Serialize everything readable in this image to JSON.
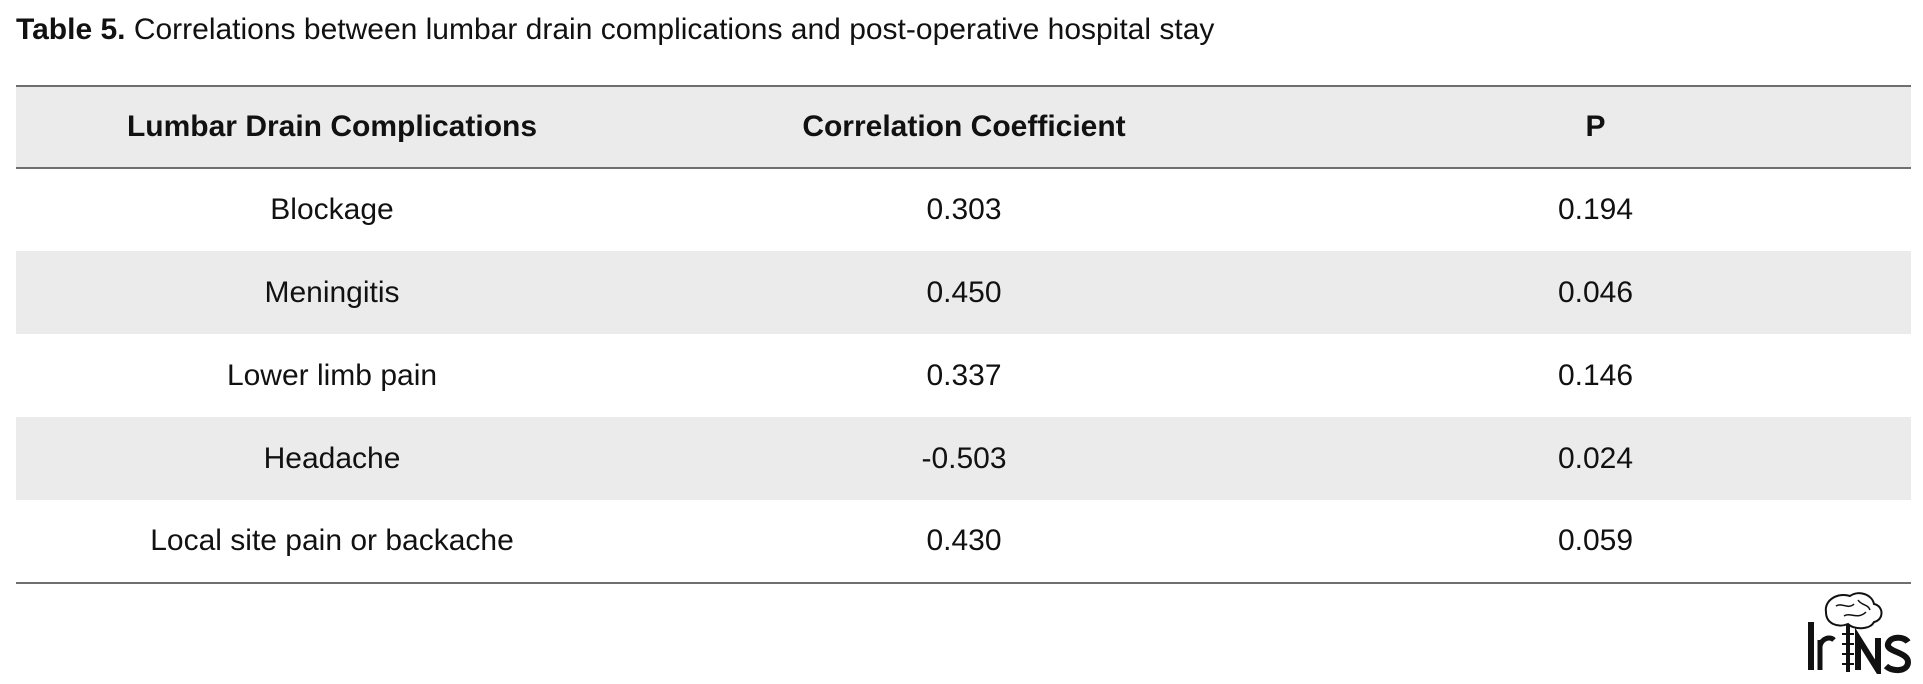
{
  "caption": {
    "label": "Table 5.",
    "text": " Correlations between lumbar drain complications and post-operative hospital stay"
  },
  "table": {
    "headers": [
      "Lumbar Drain Complications",
      "Correlation Coefficient",
      "P"
    ],
    "rows": [
      [
        "Blockage",
        "0.303",
        "0.194"
      ],
      [
        "Meningitis",
        "0.450",
        "0.046"
      ],
      [
        "Lower limb pain",
        "0.337",
        "0.146"
      ],
      [
        "Headache",
        "-0.503",
        "0.024"
      ],
      [
        "Local site pain or backache",
        "0.430",
        "0.059"
      ]
    ]
  },
  "logo": {
    "icon": "brain-spine-logo",
    "text": "IrNS"
  }
}
